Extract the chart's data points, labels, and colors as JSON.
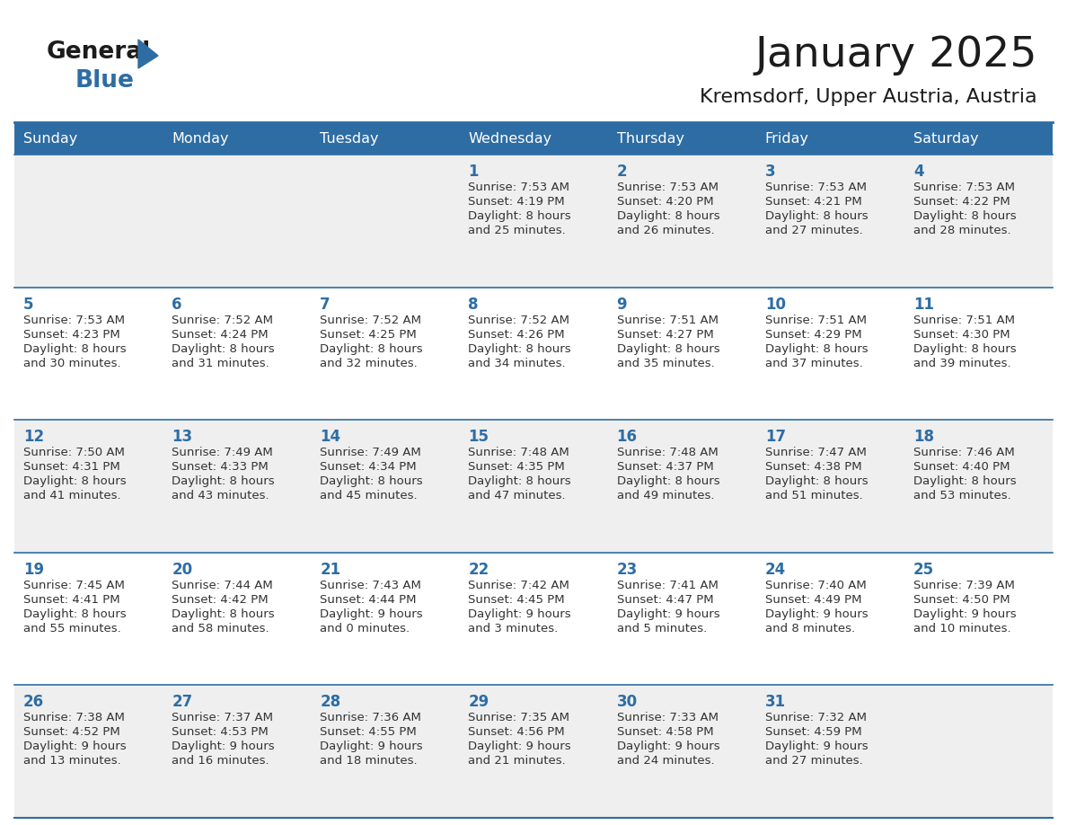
{
  "title": "January 2025",
  "subtitle": "Kremsdorf, Upper Austria, Austria",
  "header_bg": "#2E6DA4",
  "header_text_color": "#FFFFFF",
  "cell_bg_odd": "#FFFFFF",
  "cell_bg_even": "#EFEFEF",
  "day_number_color": "#2E6DA4",
  "text_color": "#333333",
  "line_color": "#2E6DA4",
  "days_of_week": [
    "Sunday",
    "Monday",
    "Tuesday",
    "Wednesday",
    "Thursday",
    "Friday",
    "Saturday"
  ],
  "calendar": [
    [
      {
        "day": "",
        "sunrise": "",
        "sunset": "",
        "daylight": ""
      },
      {
        "day": "",
        "sunrise": "",
        "sunset": "",
        "daylight": ""
      },
      {
        "day": "",
        "sunrise": "",
        "sunset": "",
        "daylight": ""
      },
      {
        "day": "1",
        "sunrise": "7:53 AM",
        "sunset": "4:19 PM",
        "daylight": "8 hours\nand 25 minutes."
      },
      {
        "day": "2",
        "sunrise": "7:53 AM",
        "sunset": "4:20 PM",
        "daylight": "8 hours\nand 26 minutes."
      },
      {
        "day": "3",
        "sunrise": "7:53 AM",
        "sunset": "4:21 PM",
        "daylight": "8 hours\nand 27 minutes."
      },
      {
        "day": "4",
        "sunrise": "7:53 AM",
        "sunset": "4:22 PM",
        "daylight": "8 hours\nand 28 minutes."
      }
    ],
    [
      {
        "day": "5",
        "sunrise": "7:53 AM",
        "sunset": "4:23 PM",
        "daylight": "8 hours\nand 30 minutes."
      },
      {
        "day": "6",
        "sunrise": "7:52 AM",
        "sunset": "4:24 PM",
        "daylight": "8 hours\nand 31 minutes."
      },
      {
        "day": "7",
        "sunrise": "7:52 AM",
        "sunset": "4:25 PM",
        "daylight": "8 hours\nand 32 minutes."
      },
      {
        "day": "8",
        "sunrise": "7:52 AM",
        "sunset": "4:26 PM",
        "daylight": "8 hours\nand 34 minutes."
      },
      {
        "day": "9",
        "sunrise": "7:51 AM",
        "sunset": "4:27 PM",
        "daylight": "8 hours\nand 35 minutes."
      },
      {
        "day": "10",
        "sunrise": "7:51 AM",
        "sunset": "4:29 PM",
        "daylight": "8 hours\nand 37 minutes."
      },
      {
        "day": "11",
        "sunrise": "7:51 AM",
        "sunset": "4:30 PM",
        "daylight": "8 hours\nand 39 minutes."
      }
    ],
    [
      {
        "day": "12",
        "sunrise": "7:50 AM",
        "sunset": "4:31 PM",
        "daylight": "8 hours\nand 41 minutes."
      },
      {
        "day": "13",
        "sunrise": "7:49 AM",
        "sunset": "4:33 PM",
        "daylight": "8 hours\nand 43 minutes."
      },
      {
        "day": "14",
        "sunrise": "7:49 AM",
        "sunset": "4:34 PM",
        "daylight": "8 hours\nand 45 minutes."
      },
      {
        "day": "15",
        "sunrise": "7:48 AM",
        "sunset": "4:35 PM",
        "daylight": "8 hours\nand 47 minutes."
      },
      {
        "day": "16",
        "sunrise": "7:48 AM",
        "sunset": "4:37 PM",
        "daylight": "8 hours\nand 49 minutes."
      },
      {
        "day": "17",
        "sunrise": "7:47 AM",
        "sunset": "4:38 PM",
        "daylight": "8 hours\nand 51 minutes."
      },
      {
        "day": "18",
        "sunrise": "7:46 AM",
        "sunset": "4:40 PM",
        "daylight": "8 hours\nand 53 minutes."
      }
    ],
    [
      {
        "day": "19",
        "sunrise": "7:45 AM",
        "sunset": "4:41 PM",
        "daylight": "8 hours\nand 55 minutes."
      },
      {
        "day": "20",
        "sunrise": "7:44 AM",
        "sunset": "4:42 PM",
        "daylight": "8 hours\nand 58 minutes."
      },
      {
        "day": "21",
        "sunrise": "7:43 AM",
        "sunset": "4:44 PM",
        "daylight": "9 hours\nand 0 minutes."
      },
      {
        "day": "22",
        "sunrise": "7:42 AM",
        "sunset": "4:45 PM",
        "daylight": "9 hours\nand 3 minutes."
      },
      {
        "day": "23",
        "sunrise": "7:41 AM",
        "sunset": "4:47 PM",
        "daylight": "9 hours\nand 5 minutes."
      },
      {
        "day": "24",
        "sunrise": "7:40 AM",
        "sunset": "4:49 PM",
        "daylight": "9 hours\nand 8 minutes."
      },
      {
        "day": "25",
        "sunrise": "7:39 AM",
        "sunset": "4:50 PM",
        "daylight": "9 hours\nand 10 minutes."
      }
    ],
    [
      {
        "day": "26",
        "sunrise": "7:38 AM",
        "sunset": "4:52 PM",
        "daylight": "9 hours\nand 13 minutes."
      },
      {
        "day": "27",
        "sunrise": "7:37 AM",
        "sunset": "4:53 PM",
        "daylight": "9 hours\nand 16 minutes."
      },
      {
        "day": "28",
        "sunrise": "7:36 AM",
        "sunset": "4:55 PM",
        "daylight": "9 hours\nand 18 minutes."
      },
      {
        "day": "29",
        "sunrise": "7:35 AM",
        "sunset": "4:56 PM",
        "daylight": "9 hours\nand 21 minutes."
      },
      {
        "day": "30",
        "sunrise": "7:33 AM",
        "sunset": "4:58 PM",
        "daylight": "9 hours\nand 24 minutes."
      },
      {
        "day": "31",
        "sunrise": "7:32 AM",
        "sunset": "4:59 PM",
        "daylight": "9 hours\nand 27 minutes."
      },
      {
        "day": "",
        "sunrise": "",
        "sunset": "",
        "daylight": ""
      }
    ]
  ]
}
